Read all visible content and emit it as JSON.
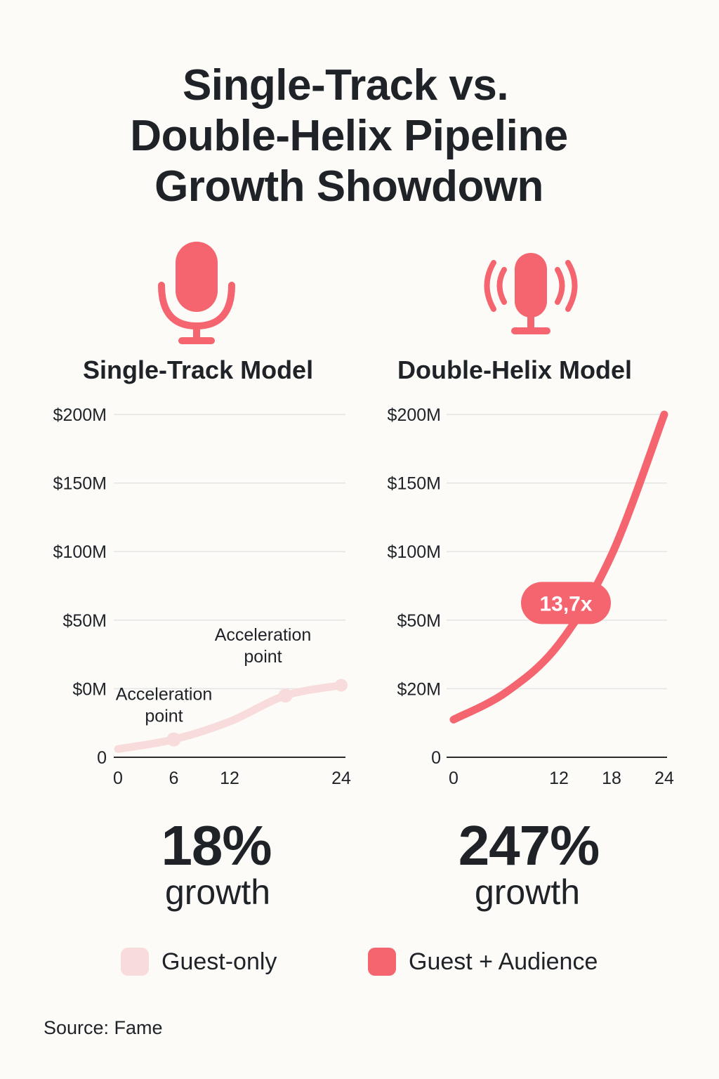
{
  "title_lines": [
    "Single-Track vs.",
    "Double-Helix Pipeline",
    "Growth Showdown"
  ],
  "colors": {
    "guest_only": "#f8dcdc",
    "guest_audience": "#f4656f",
    "grid": "#e4e4e4",
    "text": "#1f2328"
  },
  "icons": {
    "left": "microphone-icon",
    "right": "microphone-broadcast-icon"
  },
  "chart_data": [
    {
      "type": "line",
      "title": "Single-Track Model",
      "y_tick_labels": [
        "0",
        "$0M",
        "$50M",
        "$100M",
        "$150M",
        "$200M"
      ],
      "x_tick_labels": [
        "0",
        "6",
        "12",
        "24"
      ],
      "x_ticks": [
        0,
        6,
        12,
        24
      ],
      "xlim": [
        0,
        24
      ],
      "series": [
        {
          "name": "Guest-only",
          "x": [
            0,
            6,
            12,
            18,
            24
          ],
          "y": [
            0.12,
            0.26,
            0.52,
            0.9,
            1.05
          ],
          "color": "#f8dcdc"
        }
      ],
      "annotations": [
        {
          "lines": [
            "Acceleration",
            "point"
          ],
          "x": 6,
          "y": 0.26
        },
        {
          "lines": [
            "Acceleration",
            "point"
          ],
          "x": 18,
          "y": 0.9
        }
      ],
      "end_value": 1.05,
      "growth_value": "18%",
      "growth_label": "growth",
      "grid": true
    },
    {
      "type": "line",
      "title": "Double-Helix Model",
      "y_tick_labels": [
        "0",
        "$20M",
        "$50M",
        "$100M",
        "$150M",
        "$200M"
      ],
      "x_tick_labels": [
        "0",
        "12",
        "18",
        "24"
      ],
      "x_ticks": [
        0,
        12,
        18,
        24
      ],
      "xlim": [
        0,
        24
      ],
      "series": [
        {
          "name": "Guest + Audience",
          "x": [
            0,
            6,
            12,
            18,
            24
          ],
          "y": [
            0.55,
            0.95,
            1.65,
            2.95,
            5.0
          ],
          "color": "#f4656f"
        }
      ],
      "badge": {
        "label": "13,7x",
        "x": 12.8,
        "y": 2.25
      },
      "growth_value": "247%",
      "growth_label": "growth",
      "grid": true
    }
  ],
  "legend": [
    {
      "label": "Guest-only",
      "color": "#f8dcdc"
    },
    {
      "label": "Guest + Audience",
      "color": "#f4656f"
    }
  ],
  "source": "Source: Fame"
}
